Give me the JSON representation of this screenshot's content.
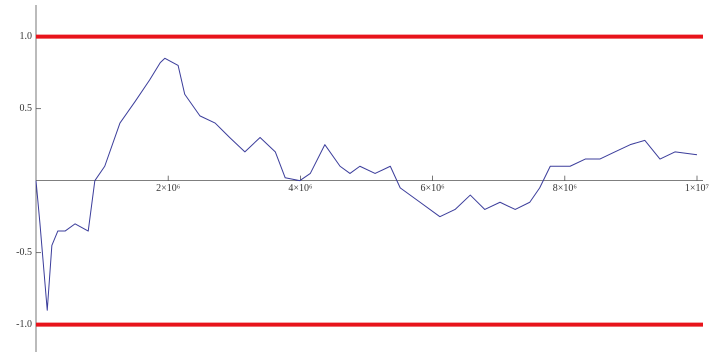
{
  "chart_data": {
    "type": "line",
    "x": [
      0,
      60000,
      170000,
      240000,
      330000,
      440000,
      590000,
      790000,
      890000,
      1040000,
      1270000,
      1500000,
      1720000,
      1880000,
      1950000,
      2150000,
      2250000,
      2480000,
      2710000,
      2930000,
      3160000,
      3390000,
      3620000,
      3770000,
      3990000,
      4150000,
      4370000,
      4600000,
      4750000,
      4900000,
      5130000,
      5360000,
      5510000,
      5810000,
      6110000,
      6340000,
      6570000,
      6790000,
      7020000,
      7250000,
      7470000,
      7620000,
      7780000,
      8080000,
      8310000,
      8530000,
      8760000,
      8990000,
      9210000,
      9440000,
      9670000,
      10000000
    ],
    "series": [
      {
        "color": "#3b3d9b",
        "values": [
          0,
          -0.3,
          -0.9,
          -0.45,
          -0.35,
          -0.35,
          -0.3,
          -0.35,
          0,
          0.1,
          0.4,
          0.55,
          0.7,
          0.82,
          0.85,
          0.8,
          0.6,
          0.45,
          0.4,
          0.3,
          0.2,
          0.3,
          0.2,
          0.02,
          0,
          0.05,
          0.25,
          0.1,
          0.05,
          0.1,
          0.05,
          0.1,
          -0.05,
          -0.15,
          -0.25,
          -0.2,
          -0.1,
          -0.2,
          -0.15,
          -0.2,
          -0.15,
          -0.05,
          0.1,
          0.1,
          0.15,
          0.15,
          0.2,
          0.25,
          0.28,
          0.15,
          0.2,
          0.18
        ]
      }
    ],
    "hlines": [
      {
        "value": 1,
        "color": "#e8141b"
      },
      {
        "value": -1,
        "color": "#e8141b"
      }
    ],
    "xlim": [
      0,
      10000000
    ],
    "ylim": [
      -1.19,
      1.22
    ],
    "xticks": [
      {
        "value": 2000000,
        "label": "2×10⁶"
      },
      {
        "value": 4000000,
        "label": "4×10⁶"
      },
      {
        "value": 6000000,
        "label": "6×10⁶"
      },
      {
        "value": 8000000,
        "label": "8×10⁶"
      },
      {
        "value": 10000000,
        "label": "1×10⁷"
      }
    ],
    "yticks": [
      {
        "value": -1,
        "label": "-1.0"
      },
      -0.5,
      0.5,
      {
        "value": 1,
        "label": "1.0"
      }
    ]
  }
}
